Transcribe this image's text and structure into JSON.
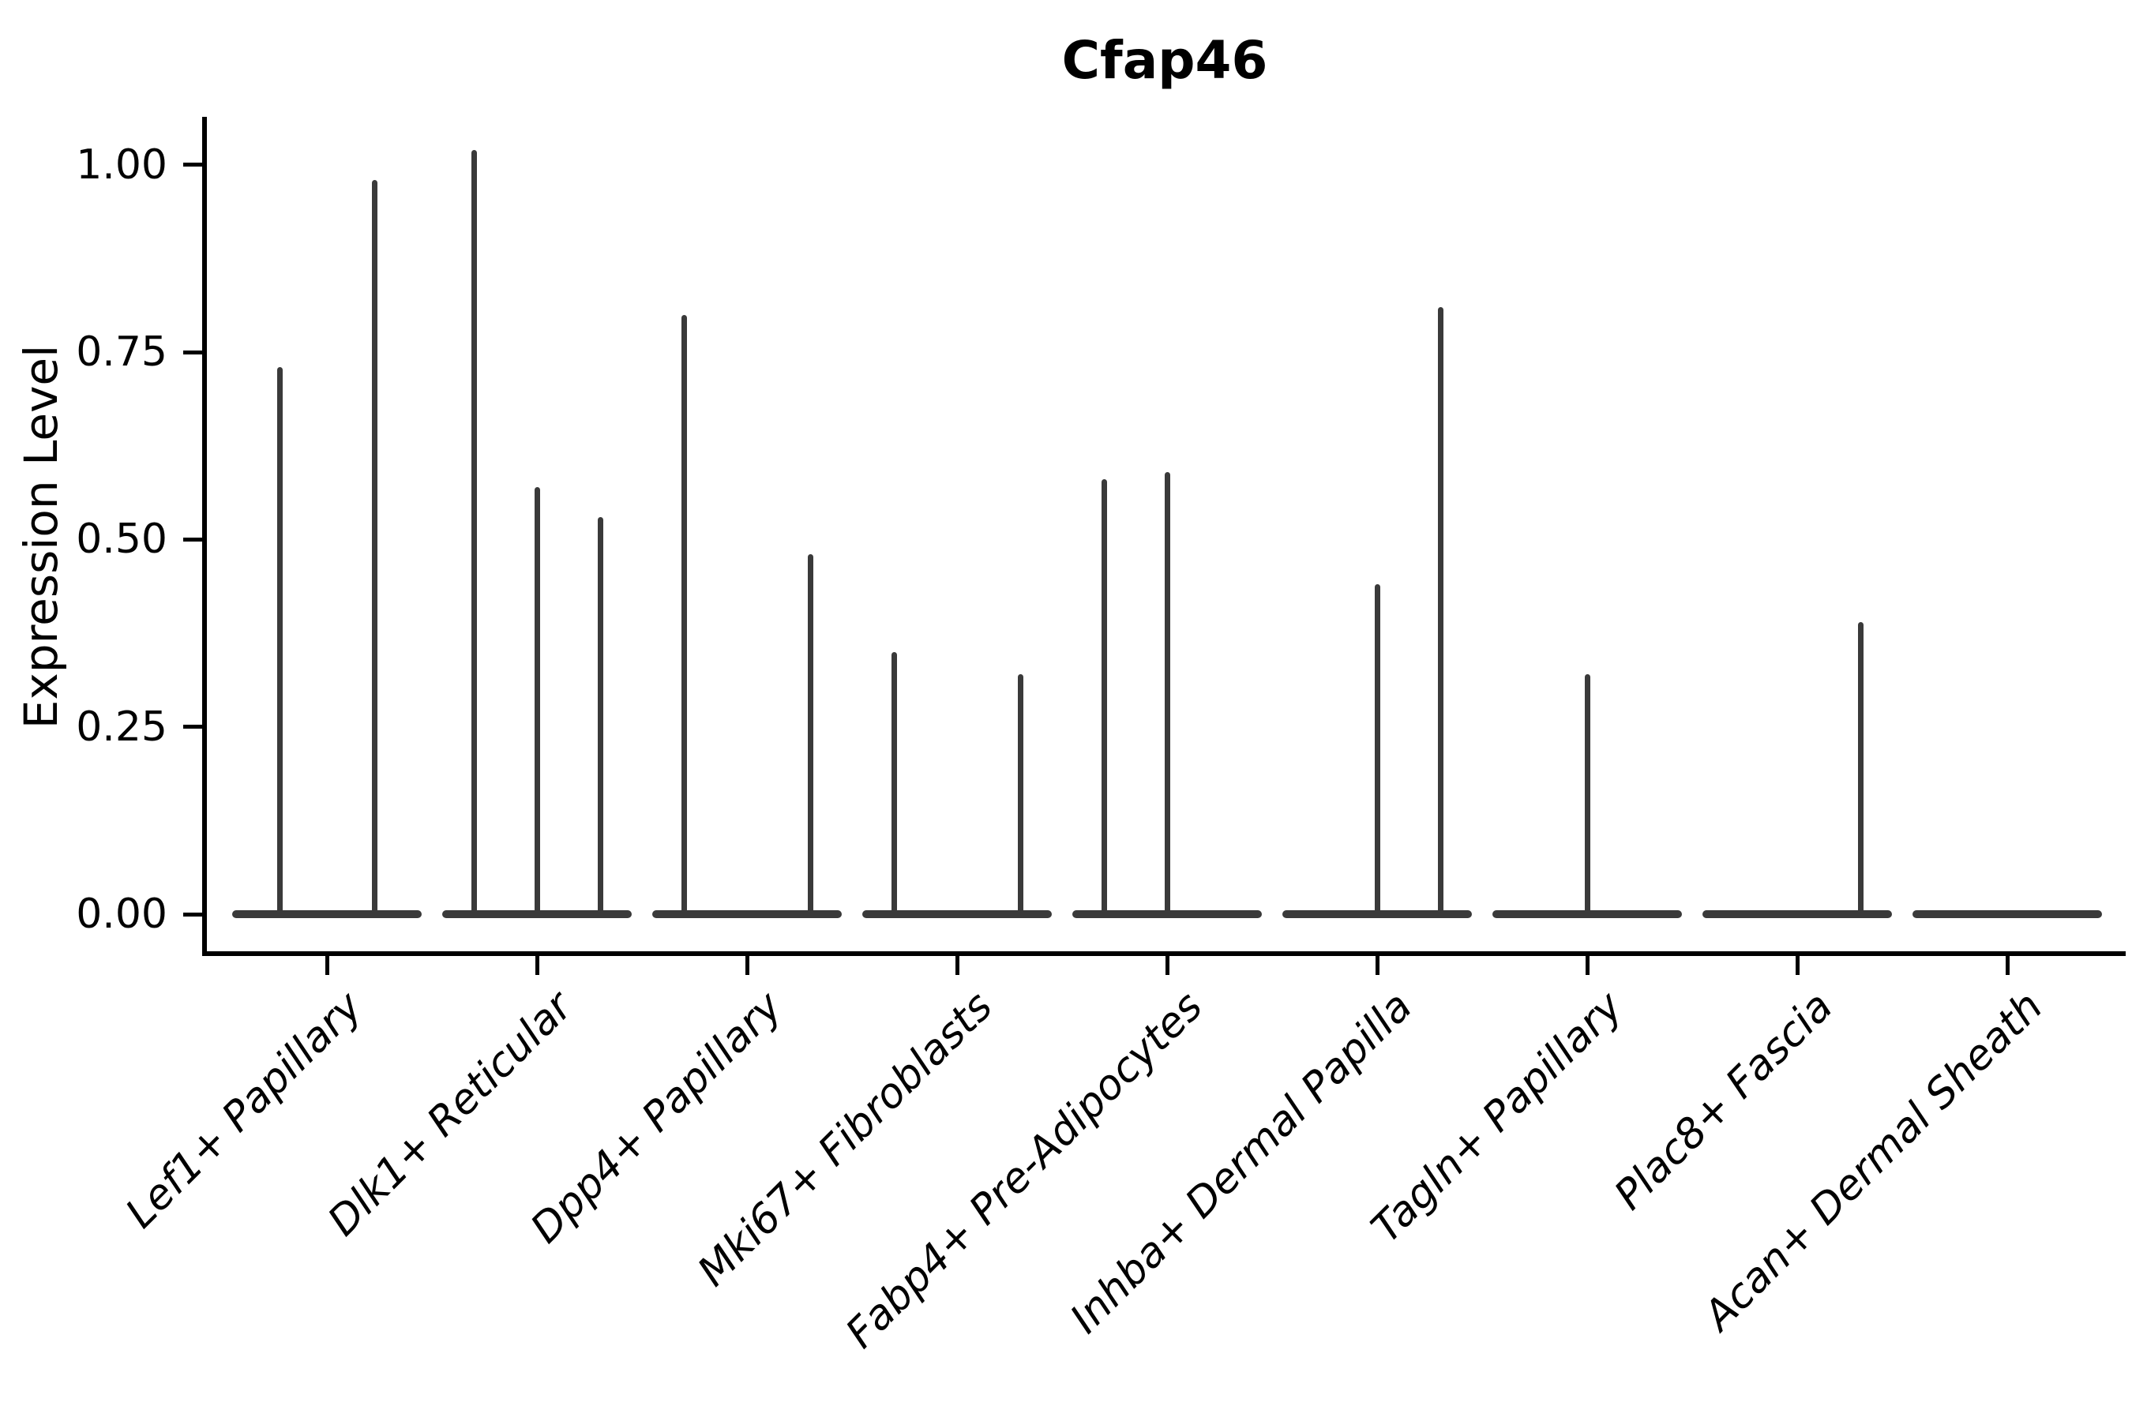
{
  "chart_data": {
    "type": "violin",
    "title": "Cfap46",
    "ylabel": "Expression Level",
    "xlabel": "",
    "ylim": [
      0.0,
      1.06
    ],
    "grid": false,
    "legend": false,
    "violin_color": "#3a3a3a",
    "axis_color": "#000000",
    "yticks": [
      {
        "label": "0.00",
        "value": 0.0
      },
      {
        "label": "0.25",
        "value": 0.25
      },
      {
        "label": "0.50",
        "value": 0.5
      },
      {
        "label": "0.75",
        "value": 0.75
      },
      {
        "label": "1.00",
        "value": 1.0
      }
    ],
    "categories": [
      {
        "label": "Lef1+ Papillary",
        "violins": [
          {
            "offset": -60,
            "max": 0.73
          },
          {
            "offset": 60,
            "max": 0.98
          }
        ]
      },
      {
        "label": "Dlk1+ Reticular",
        "violins": [
          {
            "offset": -80,
            "max": 1.02
          },
          {
            "offset": 0,
            "max": 0.57
          },
          {
            "offset": 80,
            "max": 0.53
          }
        ]
      },
      {
        "label": "Dpp4+ Papillary",
        "violins": [
          {
            "offset": -80,
            "max": 0.8
          },
          {
            "offset": 80,
            "max": 0.48
          }
        ]
      },
      {
        "label": "Mki67+ Fibroblasts",
        "violins": [
          {
            "offset": -80,
            "max": 0.35
          },
          {
            "offset": 80,
            "max": 0.32
          }
        ]
      },
      {
        "label": "Fabp4+ Pre-Adipocytes",
        "violins": [
          {
            "offset": -80,
            "max": 0.58
          },
          {
            "offset": 0,
            "max": 0.59
          }
        ]
      },
      {
        "label": "Inhba+ Dermal Papilla",
        "violins": [
          {
            "offset": 0,
            "max": 0.44
          },
          {
            "offset": 80,
            "max": 0.81
          }
        ]
      },
      {
        "label": "Tagln+ Papillary",
        "violins": [
          {
            "offset": 0,
            "max": 0.32
          }
        ]
      },
      {
        "label": "Plac8+ Fascia",
        "violins": [
          {
            "offset": 80,
            "max": 0.39
          }
        ]
      },
      {
        "label": "Acan+ Dermal Sheath",
        "violins": []
      }
    ]
  }
}
